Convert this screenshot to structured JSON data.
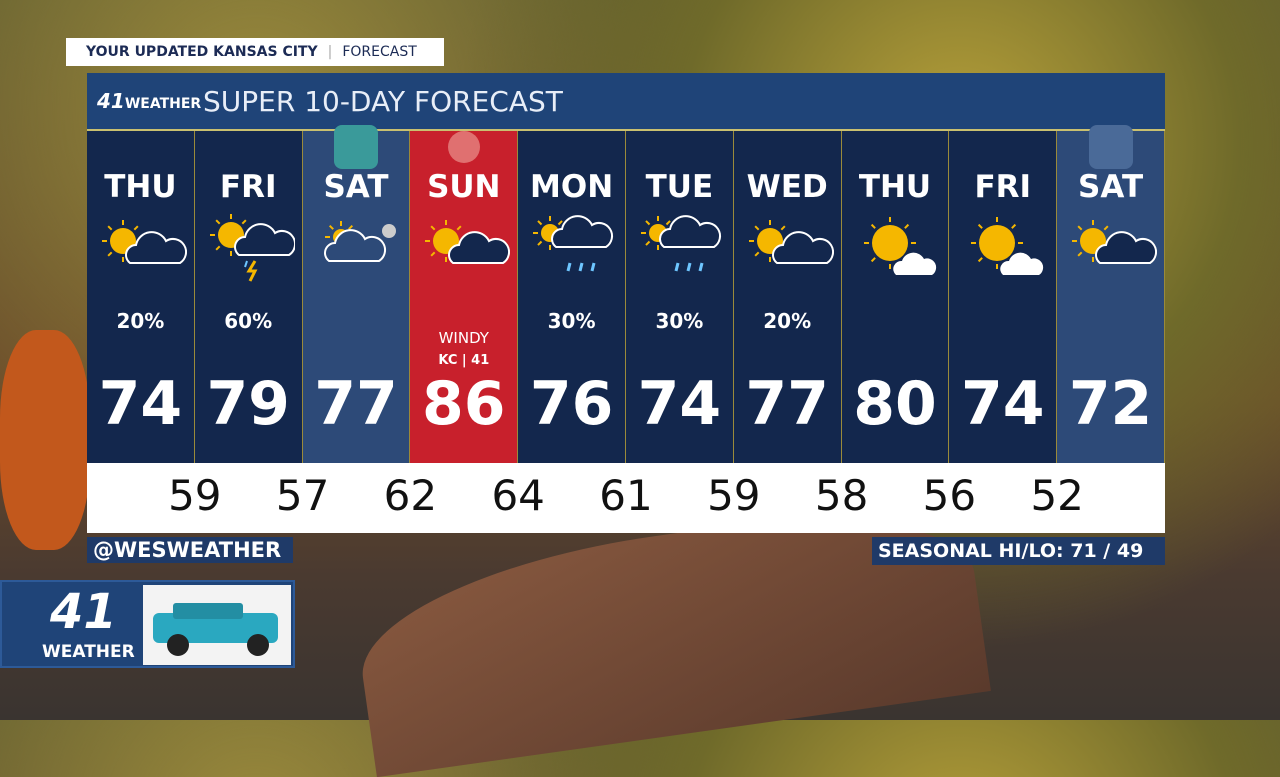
{
  "tag": {
    "title": "YOUR UPDATED KANSAS CITY",
    "subtitle": "FORECAST"
  },
  "header": {
    "logo_number": "41",
    "logo_text": "WEATHER",
    "title": "SUPER 10-DAY FORECAST"
  },
  "days": [
    {
      "day": "THU",
      "icon": "sun-cloud",
      "precip": "20%",
      "high": "74",
      "bg": "#13274d"
    },
    {
      "day": "FRI",
      "icon": "sun-storm",
      "precip": "60%",
      "high": "79",
      "bg": "#13274d"
    },
    {
      "day": "SAT",
      "icon": "partly-cloudy",
      "precip": "",
      "high": "77",
      "bg": "#2d4a78",
      "team_logo": "KC"
    },
    {
      "day": "SUN",
      "icon": "sun-cloud",
      "precip": "",
      "high": "86",
      "bg": "#c8202c",
      "note": "WINDY",
      "badge": "KC | 41",
      "team_logo": "helmet"
    },
    {
      "day": "MON",
      "icon": "rain-sun",
      "precip": "30%",
      "high": "76",
      "bg": "#13274d"
    },
    {
      "day": "TUE",
      "icon": "rain-sun",
      "precip": "30%",
      "high": "74",
      "bg": "#13274d"
    },
    {
      "day": "WED",
      "icon": "sun-cloud",
      "precip": "20%",
      "high": "77",
      "bg": "#13274d"
    },
    {
      "day": "THU",
      "icon": "sun-small-cloud",
      "precip": "",
      "high": "80",
      "bg": "#13274d"
    },
    {
      "day": "FRI",
      "icon": "sun-small-cloud",
      "precip": "",
      "high": "74",
      "bg": "#13274d"
    },
    {
      "day": "SAT",
      "icon": "sun-cloud",
      "precip": "",
      "high": "72",
      "bg": "#2d4a78",
      "team_logo": "SKC"
    }
  ],
  "lows": [
    "59",
    "57",
    "62",
    "64",
    "61",
    "59",
    "58",
    "56",
    "52"
  ],
  "handle": "@WESWEATHER",
  "seasonal": "SEASONAL HI/LO: 71 / 49",
  "brand": {
    "number": "41",
    "label": "WEATHER"
  }
}
